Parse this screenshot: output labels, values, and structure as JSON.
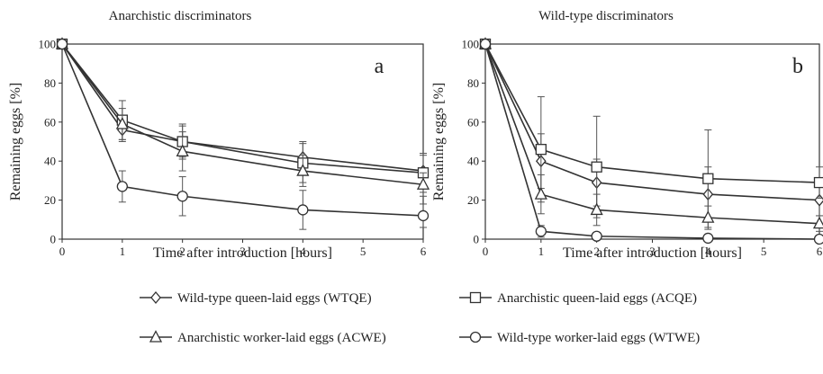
{
  "chart_data": [
    {
      "type": "line",
      "title": "Anarchistic discriminators",
      "panel_label": "a",
      "xlabel": "Time after introduction [hours]",
      "ylabel": "Remaining eggs [%]",
      "xlim": [
        0,
        6
      ],
      "ylim": [
        0,
        100
      ],
      "xticks": [
        "0",
        "1",
        "2",
        "3",
        "4",
        "5",
        "6"
      ],
      "yticks": [
        "0",
        "20",
        "40",
        "60",
        "80",
        "100"
      ],
      "grid": false,
      "series": [
        {
          "name": "Wild-type queen-laid eggs (WTQE)",
          "marker": "diamond",
          "x": [
            0,
            1,
            2,
            4,
            6
          ],
          "y": [
            100,
            56,
            50,
            42,
            35
          ],
          "err": [
            0,
            6,
            8,
            8,
            8
          ]
        },
        {
          "name": "Anarchistic queen-laid eggs (ACQE)",
          "marker": "square",
          "x": [
            0,
            1,
            2,
            4,
            6
          ],
          "y": [
            100,
            61,
            50,
            39,
            34
          ],
          "err": [
            0,
            10,
            9,
            10,
            10
          ]
        },
        {
          "name": "Anarchistic worker-laid eggs (ACWE)",
          "marker": "triangle",
          "x": [
            0,
            1,
            2,
            4,
            6
          ],
          "y": [
            100,
            59,
            45,
            35,
            28
          ],
          "err": [
            0,
            8,
            10,
            8,
            6
          ]
        },
        {
          "name": "Wild-type worker-laid eggs (WTWE)",
          "marker": "circle",
          "x": [
            0,
            1,
            2,
            4,
            6
          ],
          "y": [
            100,
            27,
            22,
            15,
            12
          ],
          "err": [
            0,
            8,
            10,
            10,
            6
          ]
        }
      ]
    },
    {
      "type": "line",
      "title": "Wild-type discriminators",
      "panel_label": "b",
      "xlabel": "Time after introduction [hours]",
      "ylabel": "Remaining eggs [%]",
      "xlim": [
        0,
        6
      ],
      "ylim": [
        0,
        100
      ],
      "xticks": [
        "0",
        "1",
        "2",
        "3",
        "4",
        "5",
        "6"
      ],
      "yticks": [
        "0",
        "20",
        "40",
        "60",
        "80",
        "100"
      ],
      "grid": false,
      "series": [
        {
          "name": "Wild-type queen-laid eggs (WTQE)",
          "marker": "diamond",
          "x": [
            0,
            1,
            2,
            4,
            6
          ],
          "y": [
            100,
            40,
            29,
            23,
            20
          ],
          "err": [
            0,
            14,
            12,
            14,
            8
          ]
        },
        {
          "name": "Anarchistic queen-laid eggs (ACQE)",
          "marker": "square",
          "x": [
            0,
            1,
            2,
            4,
            6
          ],
          "y": [
            100,
            46,
            37,
            31,
            29
          ],
          "err": [
            0,
            27,
            26,
            25,
            8
          ]
        },
        {
          "name": "Anarchistic worker-laid eggs (ACWE)",
          "marker": "triangle",
          "x": [
            0,
            1,
            2,
            4,
            6
          ],
          "y": [
            100,
            23,
            15,
            11,
            8
          ],
          "err": [
            0,
            10,
            8,
            6,
            4
          ]
        },
        {
          "name": "Wild-type worker-laid eggs (WTWE)",
          "marker": "circle",
          "x": [
            0,
            1,
            2,
            4,
            6
          ],
          "y": [
            100,
            4,
            1.5,
            0.5,
            0
          ],
          "err": [
            0,
            3,
            1.5,
            1,
            0
          ]
        }
      ]
    }
  ],
  "legend": {
    "placement": "bottom",
    "items": [
      {
        "label": "Wild-type queen-laid eggs (WTQE)",
        "marker": "diamond"
      },
      {
        "label": "Anarchistic queen-laid eggs (ACQE)",
        "marker": "square"
      },
      {
        "label": "Anarchistic worker-laid eggs (ACWE)",
        "marker": "triangle"
      },
      {
        "label": "Wild-type worker-laid eggs (WTWE)",
        "marker": "circle"
      }
    ]
  },
  "colors": {
    "line": "#333333",
    "marker_fill": "#ffffff",
    "background": "#ffffff"
  }
}
